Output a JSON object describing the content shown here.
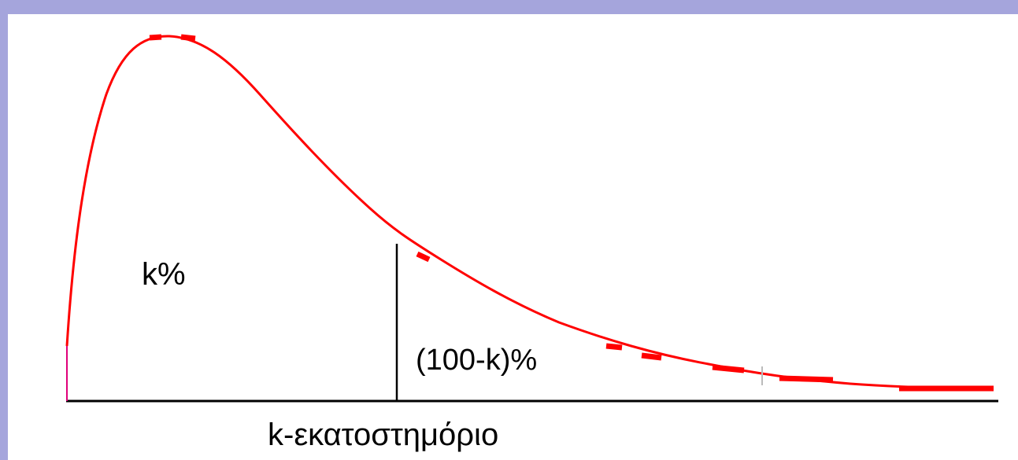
{
  "diagram": {
    "left_area_label": "k%",
    "right_area_label": "(100-k)%",
    "axis_label": "k-εκατοστημόριο"
  },
  "colors": {
    "border": "#a5a5dc",
    "curve": "#ff0000",
    "axis": "#000000",
    "start_tick": "#e0007a"
  }
}
